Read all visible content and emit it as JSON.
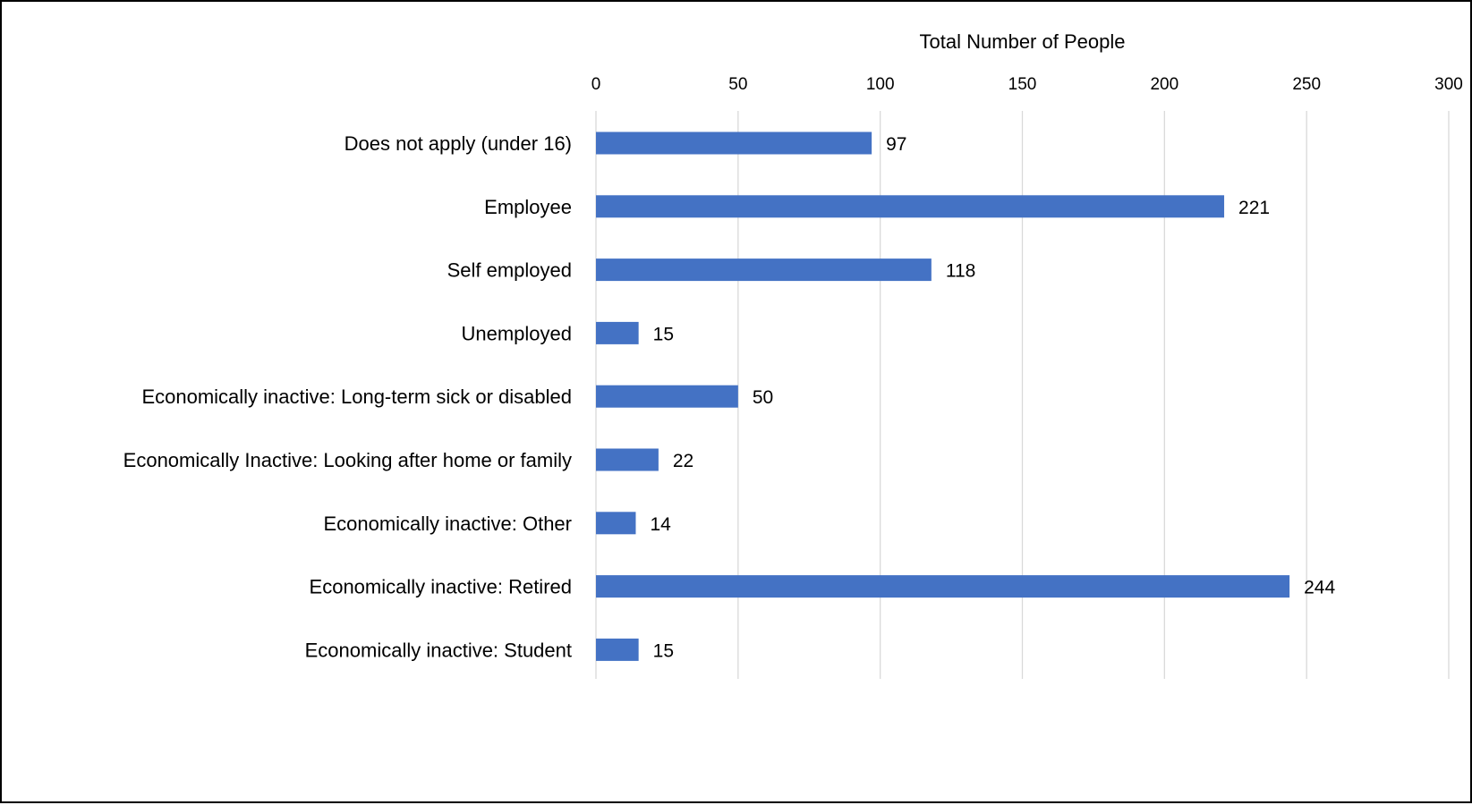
{
  "chart_data": {
    "type": "bar",
    "orientation": "horizontal",
    "title": "",
    "xlabel": "Total Number of People",
    "ylabel": "",
    "xaxis_position": "top",
    "xlim": [
      0,
      300
    ],
    "xticks": [
      0,
      50,
      100,
      150,
      200,
      250,
      300
    ],
    "grid": true,
    "legend": "none",
    "bar_color": "#4472C4",
    "gridline_color": "#D9D9D9",
    "categories": [
      "Does not apply (under 16)",
      "Employee",
      "Self employed",
      "Unemployed",
      "Economically inactive: Long-term sick or disabled",
      "Economically Inactive: Looking after home or family",
      "Economically inactive: Other",
      "Economically inactive: Retired",
      "Economically inactive: Student"
    ],
    "values": [
      97,
      221,
      118,
      15,
      50,
      22,
      14,
      244,
      15
    ],
    "data_labels": [
      "97",
      "221",
      "118",
      "15",
      "50",
      "22",
      "14",
      "244",
      "15"
    ]
  }
}
